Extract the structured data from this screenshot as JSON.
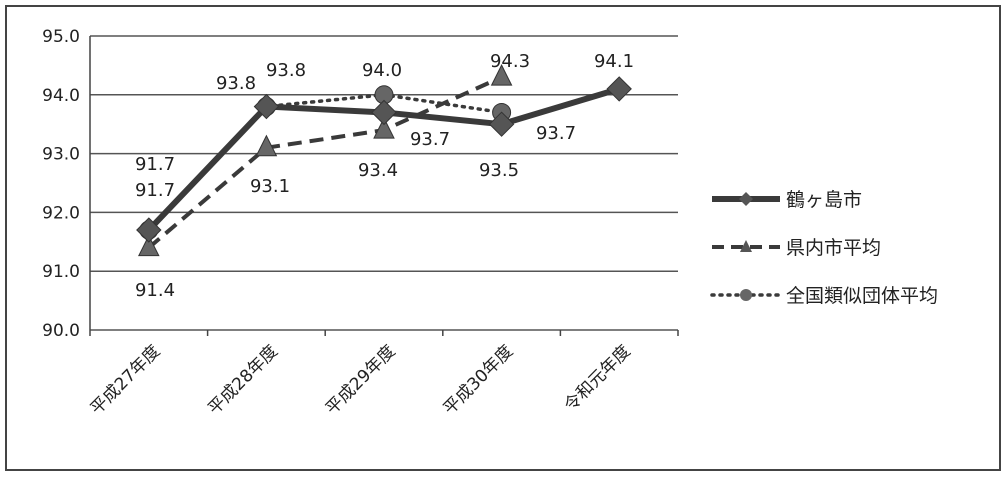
{
  "chart_data": {
    "type": "line",
    "categories": [
      "平成27年度",
      "平成28年度",
      "平成29年度",
      "平成30年度",
      "令和元年度"
    ],
    "series": [
      {
        "name": "鶴ヶ島市",
        "values": [
          91.7,
          93.8,
          93.7,
          93.5,
          94.1
        ],
        "style": "solid",
        "marker": "diamond",
        "color": "#3a3a3a"
      },
      {
        "name": "県内市平均",
        "values": [
          91.4,
          93.1,
          93.4,
          94.3,
          null
        ],
        "style": "dashed",
        "marker": "triangle",
        "color": "#3a3a3a"
      },
      {
        "name": "全国類似団体平均",
        "values": [
          91.7,
          93.8,
          94.0,
          93.7,
          null
        ],
        "style": "dotted",
        "marker": "circle",
        "color": "#3a3a3a"
      }
    ],
    "ylim": [
      90.0,
      95.0
    ],
    "yticks": [
      "90.0",
      "91.0",
      "92.0",
      "93.0",
      "94.0",
      "95.0"
    ],
    "grid": true,
    "legend_position": "right",
    "data_labels": [
      "91.7",
      "91.7",
      "91.4",
      "93.8",
      "93.8",
      "93.1",
      "94.0",
      "93.7",
      "93.4",
      "94.3",
      "93.7",
      "93.5",
      "94.1"
    ]
  }
}
